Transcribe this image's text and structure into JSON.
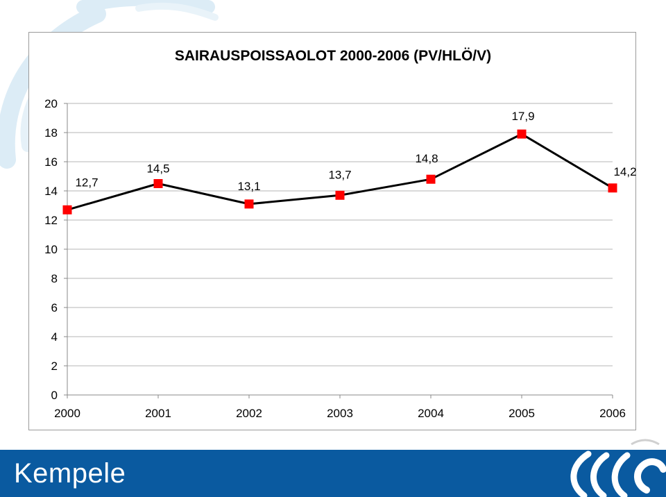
{
  "chart_data": {
    "type": "line",
    "title": "SAIRAUSPOISSAOLOT 2000-2006 (PV/HLÖ/V)",
    "categories": [
      "2000",
      "2001",
      "2002",
      "2003",
      "2004",
      "2005",
      "2006"
    ],
    "series": [
      {
        "values": [
          12.7,
          14.5,
          13.1,
          13.7,
          14.8,
          17.9,
          14.2
        ],
        "data_labels": [
          "12,7",
          "14,5",
          "13,1",
          "13,7",
          "14,8",
          "17,9",
          "14,2"
        ],
        "color": "#000000",
        "marker": "square",
        "marker_color": "#ff0000"
      }
    ],
    "y_ticks": [
      "0",
      "2",
      "4",
      "6",
      "8",
      "10",
      "12",
      "14",
      "16",
      "18",
      "20"
    ],
    "ylim": [
      0,
      20
    ],
    "grid": true,
    "legend": "none"
  },
  "footer": {
    "brand": "Kempele",
    "background": "#0a5aa0",
    "logo_icon": "kempele-wave-logo-icon"
  },
  "background_decoration": "light-blue-wave-icon"
}
